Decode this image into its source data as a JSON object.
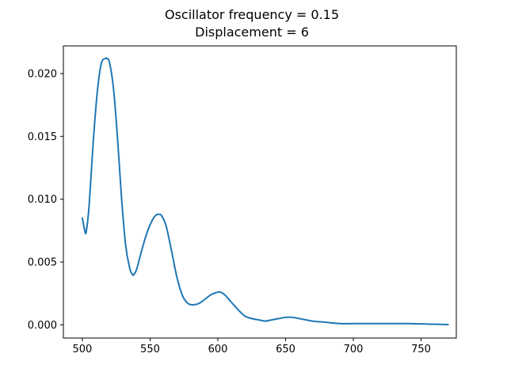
{
  "chart_data": {
    "type": "line",
    "title": "Oscillator frequency = 0.15",
    "subtitle": "Displacement =  6",
    "xlabel": "",
    "ylabel": "",
    "xlim": [
      486,
      776
    ],
    "ylim": [
      -0.00105,
      0.0222
    ],
    "grid": false,
    "x_ticks": [
      500,
      550,
      600,
      650,
      700,
      750
    ],
    "x_tick_labels": [
      "500",
      "550",
      "600",
      "650",
      "700",
      "750"
    ],
    "y_ticks": [
      0.0,
      0.005,
      0.01,
      0.015,
      0.02
    ],
    "y_tick_labels": [
      "0.000",
      "0.005",
      "0.010",
      "0.015",
      "0.020"
    ],
    "series": [
      {
        "color": "#1f77b4",
        "x": [
          500,
          502,
          503,
          505,
          508,
          511,
          514,
          517,
          518,
          520,
          523,
          526,
          529,
          532,
          535,
          537,
          538,
          540,
          543,
          547,
          551,
          554,
          557,
          559,
          562,
          566,
          570,
          574,
          578,
          582,
          586,
          590,
          595,
          600,
          602,
          605,
          610,
          615,
          620,
          625,
          630,
          635,
          640,
          645,
          650,
          655,
          660,
          665,
          670,
          680,
          690,
          700,
          720,
          740,
          760,
          770
        ],
        "y": [
          0.0085,
          0.0074,
          0.0075,
          0.0095,
          0.0145,
          0.0185,
          0.0208,
          0.0212,
          0.0212,
          0.0209,
          0.0188,
          0.0148,
          0.01,
          0.0063,
          0.0045,
          0.004,
          0.004,
          0.0044,
          0.0056,
          0.0071,
          0.0082,
          0.0087,
          0.0088,
          0.0086,
          0.0078,
          0.0058,
          0.0037,
          0.0023,
          0.0017,
          0.0016,
          0.0017,
          0.002,
          0.0024,
          0.0026,
          0.0026,
          0.0024,
          0.0018,
          0.0012,
          0.0007,
          0.0005,
          0.0004,
          0.0003,
          0.0004,
          0.0005,
          0.0006,
          0.0006,
          0.0005,
          0.0004,
          0.0003,
          0.0002,
          0.0001,
          0.0001,
          0.0001,
          0.0001,
          5e-05,
          2e-05
        ]
      }
    ]
  }
}
